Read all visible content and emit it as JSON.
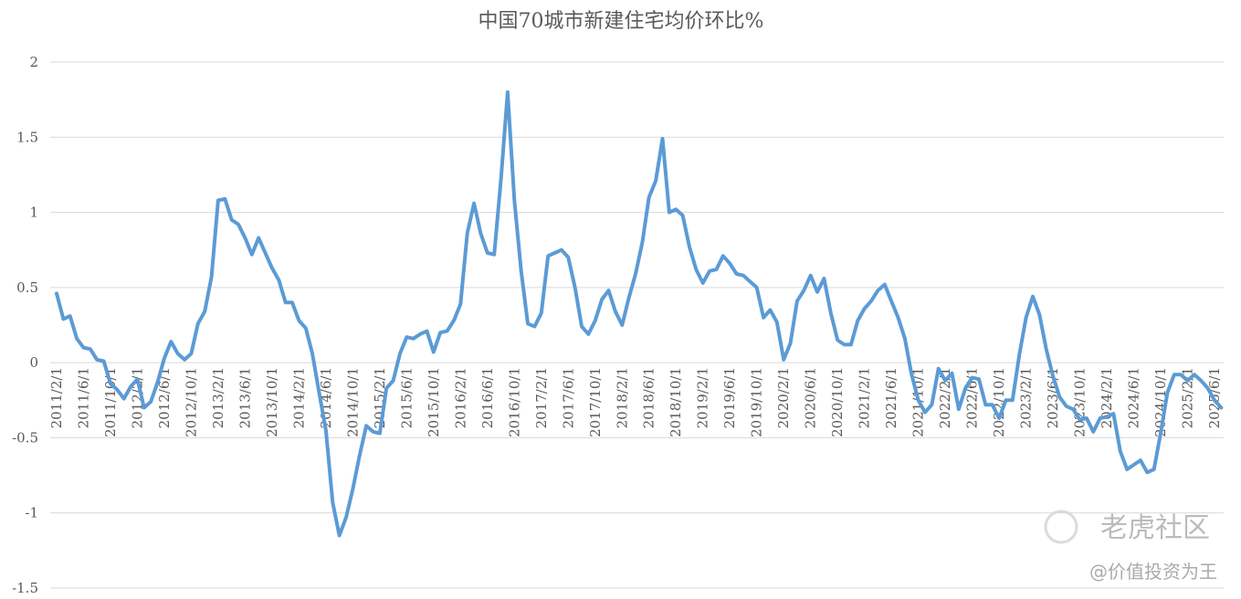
{
  "chart_data": {
    "type": "line",
    "title": "中国70城市新建住宅均价环比%",
    "categories": [
      "2011/2/1",
      null,
      null,
      null,
      "2011/6/1",
      null,
      null,
      null,
      "2011/10/1",
      null,
      null,
      null,
      "2012/2/1",
      null,
      null,
      null,
      "2012/6/1",
      null,
      null,
      null,
      "2012/10/1",
      null,
      null,
      null,
      "2013/2/1",
      null,
      null,
      null,
      "2013/6/1",
      null,
      null,
      null,
      "2013/10/1",
      null,
      null,
      null,
      "2014/2/1",
      null,
      null,
      null,
      "2014/6/1",
      null,
      null,
      null,
      "2014/10/1",
      null,
      null,
      null,
      "2015/2/1",
      null,
      null,
      null,
      "2015/6/1",
      null,
      null,
      null,
      "2015/10/1",
      null,
      null,
      null,
      "2016/2/1",
      null,
      null,
      null,
      "2016/6/1",
      null,
      null,
      null,
      "2016/10/1",
      null,
      null,
      null,
      "2017/2/1",
      null,
      null,
      null,
      "2017/6/1",
      null,
      null,
      null,
      "2017/10/1",
      null,
      null,
      null,
      "2018/2/1",
      null,
      null,
      null,
      "2018/6/1",
      null,
      null,
      null,
      "2018/10/1",
      null,
      null,
      null,
      "2019/2/1",
      null,
      null,
      null,
      "2019/6/1",
      null,
      null,
      null,
      "2019/10/1",
      null,
      null,
      null,
      "2020/2/1",
      null,
      null,
      null,
      "2020/6/1",
      null,
      null,
      null,
      "2020/10/1",
      null,
      null,
      null,
      "2021/2/1",
      null,
      null,
      null,
      "2021/6/1",
      null,
      null,
      null,
      "2021/10/1",
      null,
      null,
      null,
      "2022/2/1",
      null,
      null,
      null,
      "2022/6/1",
      null,
      null,
      null,
      "2022/10/1",
      null,
      null,
      null,
      "2023/2/1",
      null,
      null,
      null,
      "2023/6/1",
      null,
      null,
      null,
      "2023/10/1",
      null,
      null,
      null,
      "2024/2/1",
      null,
      null,
      null,
      "2024/6/1",
      null,
      null,
      null,
      "2024/10/1",
      null,
      null,
      null,
      "2025/2/1",
      null,
      null,
      null,
      "2025/6/1",
      null
    ],
    "series": [
      {
        "name": "中国70城市新建住宅均价环比%",
        "color": "#5b9bd5",
        "values": [
          0.46,
          0.29,
          0.31,
          0.16,
          0.1,
          0.09,
          0.02,
          0.01,
          -0.14,
          -0.18,
          -0.24,
          -0.16,
          -0.11,
          -0.3,
          -0.26,
          -0.13,
          0.03,
          0.14,
          0.06,
          0.02,
          0.06,
          0.26,
          0.34,
          0.57,
          1.08,
          1.09,
          0.95,
          0.92,
          0.83,
          0.72,
          0.83,
          0.73,
          0.63,
          0.55,
          0.4,
          0.4,
          0.28,
          0.23,
          0.06,
          -0.2,
          -0.45,
          -0.93,
          -1.15,
          -1.03,
          -0.84,
          -0.62,
          -0.42,
          -0.46,
          -0.47,
          -0.17,
          -0.12,
          0.06,
          0.17,
          0.16,
          0.19,
          0.21,
          0.07,
          0.2,
          0.21,
          0.28,
          0.39,
          0.86,
          1.06,
          0.86,
          0.73,
          0.72,
          1.22,
          1.8,
          1.08,
          0.61,
          0.26,
          0.24,
          0.33,
          0.71,
          0.73,
          0.75,
          0.7,
          0.5,
          0.24,
          0.19,
          0.28,
          0.42,
          0.48,
          0.34,
          0.25,
          0.43,
          0.59,
          0.8,
          1.1,
          1.21,
          1.49,
          1.0,
          1.02,
          0.98,
          0.77,
          0.62,
          0.53,
          0.61,
          0.62,
          0.71,
          0.66,
          0.59,
          0.58,
          0.54,
          0.5,
          0.3,
          0.35,
          0.27,
          0.02,
          0.13,
          0.41,
          0.48,
          0.58,
          0.47,
          0.56,
          0.33,
          0.15,
          0.12,
          0.12,
          0.28,
          0.36,
          0.41,
          0.48,
          0.52,
          0.41,
          0.3,
          0.16,
          -0.08,
          -0.25,
          -0.33,
          -0.28,
          -0.04,
          -0.12,
          -0.07,
          -0.31,
          -0.17,
          -0.1,
          -0.11,
          -0.28,
          -0.28,
          -0.37,
          -0.25,
          -0.25,
          0.05,
          0.3,
          0.44,
          0.32,
          0.09,
          -0.09,
          -0.23,
          -0.29,
          -0.31,
          -0.38,
          -0.37,
          -0.46,
          -0.37,
          -0.36,
          -0.34,
          -0.59,
          -0.71,
          -0.68,
          -0.65,
          -0.73,
          -0.71,
          -0.47,
          -0.2,
          -0.08,
          -0.08,
          -0.12,
          -0.08,
          -0.12,
          -0.17,
          -0.25,
          -0.3
        ]
      }
    ],
    "ylim": [
      -1.5,
      2
    ],
    "yticks": [
      -1.5,
      -1,
      -0.5,
      0,
      0.5,
      1,
      1.5,
      2
    ],
    "grid": true,
    "annotations": [
      "老虎社区",
      "@价值投资为王"
    ]
  }
}
